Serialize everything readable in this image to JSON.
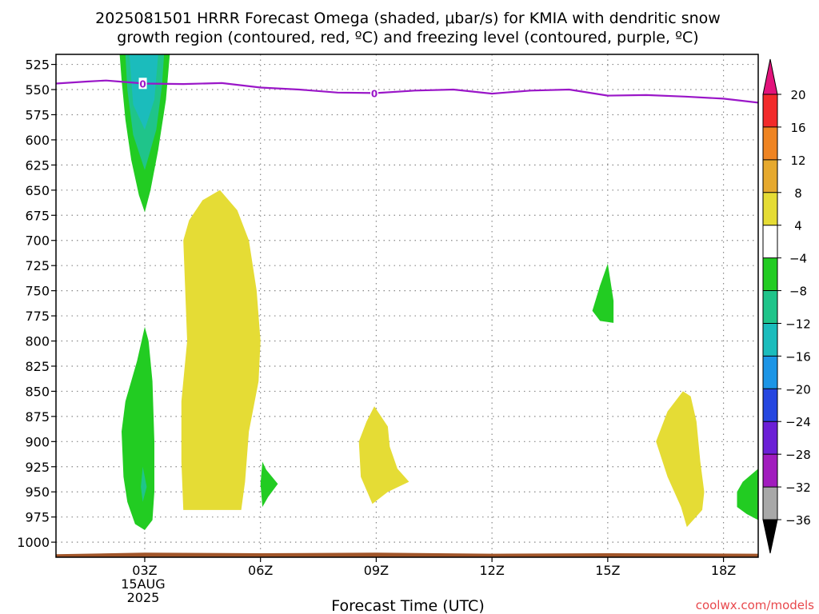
{
  "chart_data": {
    "type": "heatmap",
    "title_line1": "2025081501 HRRR Forecast Omega (shaded, μbar/s) for KMIA with dendritic snow",
    "title_line2": "growth region (contoured, red, ºC) and freezing level (contoured, purple, ºC)",
    "xlabel": "Forecast Time (UTC)",
    "credit": "coolwx.com/models",
    "credit_color": "#e8484c",
    "x_unit": "forecast hour (UTC)",
    "xlim": [
      0.7,
      18.9
    ],
    "x_ticks": [
      {
        "x": 3,
        "label": "03Z",
        "sub1": "15AUG",
        "sub2": "2025"
      },
      {
        "x": 6,
        "label": "06Z"
      },
      {
        "x": 9,
        "label": "09Z"
      },
      {
        "x": 12,
        "label": "12Z"
      },
      {
        "x": 15,
        "label": "15Z"
      },
      {
        "x": 18,
        "label": "18Z"
      }
    ],
    "y_unit": "hPa",
    "ylim": [
      1015,
      515
    ],
    "y_ticks": [
      525,
      550,
      575,
      600,
      625,
      650,
      675,
      700,
      725,
      750,
      775,
      800,
      825,
      850,
      875,
      900,
      925,
      950,
      975,
      1000
    ],
    "grid": true,
    "colorbar": {
      "ticks": [
        20,
        16,
        12,
        8,
        4,
        -4,
        -8,
        -12,
        -16,
        -20,
        -24,
        -28,
        -32,
        -36
      ],
      "top_arrow_color": "#e2137b",
      "bottom_arrow_color": "#000000",
      "bins": [
        {
          "lo": 16,
          "hi": 20,
          "color": "#f22a2a"
        },
        {
          "lo": 12,
          "hi": 16,
          "color": "#ef8422"
        },
        {
          "lo": 8,
          "hi": 12,
          "color": "#e6a92e"
        },
        {
          "lo": 4,
          "hi": 8,
          "color": "#e5dc35"
        },
        {
          "lo": -4,
          "hi": 4,
          "color": "#ffffff"
        },
        {
          "lo": -8,
          "hi": -4,
          "color": "#22cc22"
        },
        {
          "lo": -12,
          "hi": -8,
          "color": "#1fc48a"
        },
        {
          "lo": -16,
          "hi": -12,
          "color": "#1bbcbc"
        },
        {
          "lo": -20,
          "hi": -16,
          "color": "#1c95e6"
        },
        {
          "lo": -24,
          "hi": -20,
          "color": "#2546e0"
        },
        {
          "lo": -28,
          "hi": -24,
          "color": "#6b1fd6"
        },
        {
          "lo": -32,
          "hi": -28,
          "color": "#a11cbe"
        },
        {
          "lo": -36,
          "hi": -32,
          "color": "#a8a8a8"
        }
      ]
    },
    "freezing_level": {
      "color": "#9a16c8",
      "label": "0",
      "label_x": [
        2.95,
        8.95
      ],
      "points": [
        [
          0.7,
          544
        ],
        [
          1.5,
          542
        ],
        [
          2,
          541
        ],
        [
          2.5,
          542.5
        ],
        [
          3,
          544
        ],
        [
          4,
          544.5
        ],
        [
          5,
          543.5
        ],
        [
          6,
          548
        ],
        [
          7,
          550
        ],
        [
          8,
          553
        ],
        [
          9,
          553.5
        ],
        [
          10,
          551
        ],
        [
          11,
          550
        ],
        [
          12,
          554
        ],
        [
          13,
          551
        ],
        [
          14,
          550
        ],
        [
          15,
          556
        ],
        [
          16,
          555.5
        ],
        [
          17,
          557
        ],
        [
          18,
          559
        ],
        [
          18.9,
          563
        ]
      ]
    },
    "ground": {
      "color": "#a15529",
      "points": [
        [
          0.7,
          1012
        ],
        [
          3,
          1010.5
        ],
        [
          6,
          1011
        ],
        [
          9,
          1010.5
        ],
        [
          12,
          1011.5
        ],
        [
          15,
          1011
        ],
        [
          18.9,
          1011.5
        ]
      ]
    },
    "shaded_regions": [
      {
        "bin": "-8 to -4",
        "color": "#22cc22",
        "points": [
          [
            2.35,
            515
          ],
          [
            2.4,
            540
          ],
          [
            2.5,
            580
          ],
          [
            2.65,
            620
          ],
          [
            2.85,
            655
          ],
          [
            3,
            672
          ],
          [
            3.15,
            650
          ],
          [
            3.35,
            610
          ],
          [
            3.55,
            560
          ],
          [
            3.65,
            515
          ]
        ]
      },
      {
        "bin": "-12 to -8",
        "color": "#1fc48a",
        "points": [
          [
            2.5,
            515
          ],
          [
            2.55,
            550
          ],
          [
            2.7,
            595
          ],
          [
            3,
            630
          ],
          [
            3.3,
            590
          ],
          [
            3.45,
            545
          ],
          [
            3.5,
            515
          ]
        ]
      },
      {
        "bin": "-16 to -12",
        "color": "#1bbcbc",
        "points": [
          [
            2.6,
            515
          ],
          [
            2.7,
            565
          ],
          [
            3,
            590
          ],
          [
            3.25,
            560
          ],
          [
            3.35,
            515
          ]
        ]
      },
      {
        "bin": "-8 to -4",
        "color": "#22cc22",
        "points": [
          [
            3,
            786
          ],
          [
            2.8,
            820
          ],
          [
            2.5,
            860
          ],
          [
            2.4,
            890
          ],
          [
            2.45,
            935
          ],
          [
            2.55,
            960
          ],
          [
            2.75,
            982
          ],
          [
            3,
            988
          ],
          [
            3.2,
            978
          ],
          [
            3.25,
            950
          ],
          [
            3.25,
            900
          ],
          [
            3.2,
            840
          ],
          [
            3.1,
            800
          ]
        ]
      },
      {
        "bin": "-12 to -8",
        "color": "#1fc48a",
        "points": [
          [
            2.95,
            925
          ],
          [
            2.9,
            945
          ],
          [
            2.95,
            960
          ],
          [
            3.05,
            945
          ]
        ]
      },
      {
        "bin": "4 to 8",
        "color": "#e5dc35",
        "points": [
          [
            4.95,
            650
          ],
          [
            4.5,
            660
          ],
          [
            4.15,
            680
          ],
          [
            4,
            700
          ],
          [
            4.05,
            750
          ],
          [
            4.1,
            800
          ],
          [
            3.95,
            860
          ],
          [
            3.95,
            920
          ],
          [
            4,
            968
          ],
          [
            4.5,
            968
          ],
          [
            5.5,
            968
          ],
          [
            5.6,
            940
          ],
          [
            5.7,
            890
          ],
          [
            5.95,
            840
          ],
          [
            6,
            800
          ],
          [
            5.9,
            750
          ],
          [
            5.7,
            700
          ],
          [
            5.4,
            670
          ]
        ]
      },
      {
        "bin": "-8 to -4",
        "color": "#22cc22",
        "points": [
          [
            6.05,
            920
          ],
          [
            6.15,
            928
          ],
          [
            6.45,
            942
          ],
          [
            6.2,
            955
          ],
          [
            6.05,
            965
          ],
          [
            6,
            942
          ]
        ]
      },
      {
        "bin": "4 to 8",
        "color": "#e5dc35",
        "points": [
          [
            8.95,
            865
          ],
          [
            8.75,
            880
          ],
          [
            8.55,
            900
          ],
          [
            8.6,
            935
          ],
          [
            8.9,
            962
          ],
          [
            9.3,
            950
          ],
          [
            9.85,
            940
          ],
          [
            9.55,
            927
          ],
          [
            9.35,
            905
          ],
          [
            9.3,
            885
          ]
        ]
      },
      {
        "bin": "-8 to -4",
        "color": "#22cc22",
        "points": [
          [
            15,
            723
          ],
          [
            14.8,
            745
          ],
          [
            14.6,
            770
          ],
          [
            14.8,
            780
          ],
          [
            15.15,
            782
          ],
          [
            15.15,
            760
          ]
        ]
      },
      {
        "bin": "4 to 8",
        "color": "#e5dc35",
        "points": [
          [
            16.95,
            850
          ],
          [
            16.55,
            870
          ],
          [
            16.25,
            900
          ],
          [
            16.55,
            935
          ],
          [
            16.9,
            965
          ],
          [
            17.05,
            985
          ],
          [
            17.45,
            968
          ],
          [
            17.5,
            950
          ],
          [
            17.4,
            920
          ],
          [
            17.3,
            880
          ],
          [
            17.15,
            855
          ]
        ]
      },
      {
        "bin": "-8 to -4",
        "color": "#22cc22",
        "points": [
          [
            18.9,
            927
          ],
          [
            18.5,
            940
          ],
          [
            18.35,
            950
          ],
          [
            18.35,
            965
          ],
          [
            18.6,
            972
          ],
          [
            18.9,
            978
          ]
        ]
      }
    ]
  }
}
